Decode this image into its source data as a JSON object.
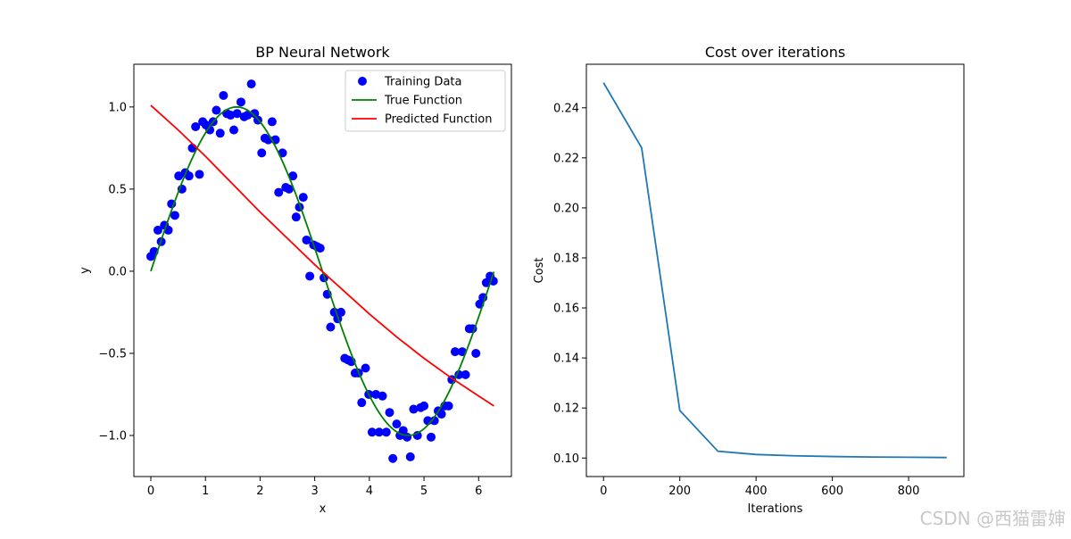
{
  "watermark": "CSDN @西猫雷婶",
  "chart_data": [
    {
      "type": "scatter",
      "title": "BP Neural Network",
      "xlabel": "x",
      "ylabel": "y",
      "xlim": [
        -0.31,
        6.6
      ],
      "ylim": [
        -1.25,
        1.26
      ],
      "xticks": [
        0,
        1,
        2,
        3,
        4,
        5,
        6
      ],
      "yticks": [
        -1.0,
        -0.5,
        0.0,
        0.5,
        1.0
      ],
      "ytick_labels": [
        "−1.0",
        "−0.5",
        "0.0",
        "0.5",
        "1.0"
      ],
      "legend_position": "top-right",
      "series": [
        {
          "name": "Training Data",
          "kind": "scatter",
          "color": "#0000ff",
          "points": [
            [
              0.0,
              0.09
            ],
            [
              0.06,
              0.12
            ],
            [
              0.13,
              0.25
            ],
            [
              0.19,
              0.18
            ],
            [
              0.25,
              0.28
            ],
            [
              0.32,
              0.25
            ],
            [
              0.38,
              0.41
            ],
            [
              0.44,
              0.34
            ],
            [
              0.51,
              0.58
            ],
            [
              0.57,
              0.5
            ],
            [
              0.63,
              0.6
            ],
            [
              0.7,
              0.58
            ],
            [
              0.76,
              0.75
            ],
            [
              0.82,
              0.88
            ],
            [
              0.89,
              0.59
            ],
            [
              0.95,
              0.91
            ],
            [
              1.01,
              0.89
            ],
            [
              1.08,
              0.86
            ],
            [
              1.14,
              0.91
            ],
            [
              1.2,
              0.98
            ],
            [
              1.27,
              0.84
            ],
            [
              1.33,
              1.07
            ],
            [
              1.39,
              0.96
            ],
            [
              1.46,
              0.95
            ],
            [
              1.52,
              0.86
            ],
            [
              1.58,
              0.96
            ],
            [
              1.65,
              1.03
            ],
            [
              1.71,
              0.94
            ],
            [
              1.77,
              0.95
            ],
            [
              1.84,
              1.14
            ],
            [
              1.9,
              0.96
            ],
            [
              1.96,
              0.92
            ],
            [
              2.03,
              0.72
            ],
            [
              2.09,
              0.81
            ],
            [
              2.15,
              0.8
            ],
            [
              2.22,
              0.91
            ],
            [
              2.28,
              0.8
            ],
            [
              2.34,
              0.48
            ],
            [
              2.41,
              0.72
            ],
            [
              2.47,
              0.51
            ],
            [
              2.53,
              0.5
            ],
            [
              2.6,
              0.58
            ],
            [
              2.66,
              0.33
            ],
            [
              2.72,
              0.39
            ],
            [
              2.79,
              0.45
            ],
            [
              2.85,
              0.19
            ],
            [
              2.91,
              -0.03
            ],
            [
              2.98,
              0.16
            ],
            [
              3.04,
              0.15
            ],
            [
              3.1,
              0.14
            ],
            [
              3.17,
              -0.04
            ],
            [
              3.23,
              -0.14
            ],
            [
              3.29,
              -0.34
            ],
            [
              3.36,
              -0.25
            ],
            [
              3.42,
              -0.29
            ],
            [
              3.48,
              -0.25
            ],
            [
              3.55,
              -0.53
            ],
            [
              3.61,
              -0.54
            ],
            [
              3.67,
              -0.55
            ],
            [
              3.74,
              -0.62
            ],
            [
              3.8,
              -0.62
            ],
            [
              3.86,
              -0.8
            ],
            [
              3.93,
              -0.59
            ],
            [
              3.99,
              -0.75
            ],
            [
              4.05,
              -0.98
            ],
            [
              4.12,
              -0.75
            ],
            [
              4.18,
              -0.98
            ],
            [
              4.24,
              -0.76
            ],
            [
              4.31,
              -0.98
            ],
            [
              4.37,
              -0.86
            ],
            [
              4.43,
              -1.14
            ],
            [
              4.5,
              -0.93
            ],
            [
              4.56,
              -1.0
            ],
            [
              4.62,
              -0.97
            ],
            [
              4.69,
              -1.01
            ],
            [
              4.75,
              -1.13
            ],
            [
              4.81,
              -0.84
            ],
            [
              4.88,
              -1.0
            ],
            [
              4.94,
              -0.83
            ],
            [
              5.0,
              -0.82
            ],
            [
              5.07,
              -0.91
            ],
            [
              5.13,
              -1.01
            ],
            [
              5.19,
              -0.91
            ],
            [
              5.26,
              -0.85
            ],
            [
              5.32,
              -0.87
            ],
            [
              5.38,
              -0.82
            ],
            [
              5.45,
              -0.82
            ],
            [
              5.51,
              -0.66
            ],
            [
              5.57,
              -0.49
            ],
            [
              5.64,
              -0.63
            ],
            [
              5.7,
              -0.49
            ],
            [
              5.76,
              -0.63
            ],
            [
              5.83,
              -0.35
            ],
            [
              5.89,
              -0.35
            ],
            [
              5.95,
              -0.5
            ],
            [
              6.02,
              -0.2
            ],
            [
              6.08,
              -0.16
            ],
            [
              6.14,
              -0.07
            ],
            [
              6.21,
              -0.03
            ],
            [
              6.27,
              -0.06
            ]
          ]
        },
        {
          "name": "True Function",
          "kind": "line",
          "color": "#008000",
          "function": "sin",
          "x_range": [
            0,
            6.28
          ]
        },
        {
          "name": "Predicted Function",
          "kind": "line",
          "color": "#ff0000",
          "points": [
            [
              0.0,
              1.01
            ],
            [
              0.5,
              0.86
            ],
            [
              1.0,
              0.7
            ],
            [
              1.5,
              0.53
            ],
            [
              2.0,
              0.36
            ],
            [
              2.5,
              0.2
            ],
            [
              3.0,
              0.04
            ],
            [
              3.5,
              -0.11
            ],
            [
              4.0,
              -0.26
            ],
            [
              4.5,
              -0.4
            ],
            [
              5.0,
              -0.53
            ],
            [
              5.5,
              -0.65
            ],
            [
              6.0,
              -0.76
            ],
            [
              6.28,
              -0.82
            ]
          ]
        }
      ]
    },
    {
      "type": "line",
      "title": "Cost over iterations",
      "xlabel": "Iterations",
      "ylabel": "Cost",
      "xlim": [
        -45,
        945
      ],
      "ylim": [
        0.0926,
        0.2574
      ],
      "xticks": [
        0,
        200,
        400,
        600,
        800
      ],
      "yticks": [
        0.1,
        0.12,
        0.14,
        0.16,
        0.18,
        0.2,
        0.22,
        0.24
      ],
      "ytick_labels": [
        "0.10",
        "0.12",
        "0.14",
        "0.16",
        "0.18",
        "0.20",
        "0.22",
        "0.24"
      ],
      "series": [
        {
          "color": "#1f77b4",
          "x": [
            0,
            100,
            200,
            300,
            400,
            500,
            600,
            700,
            800,
            900
          ],
          "y": [
            0.25,
            0.224,
            0.119,
            0.1027,
            0.1014,
            0.1009,
            0.1006,
            0.1004,
            0.1003,
            0.1002
          ]
        }
      ]
    }
  ]
}
